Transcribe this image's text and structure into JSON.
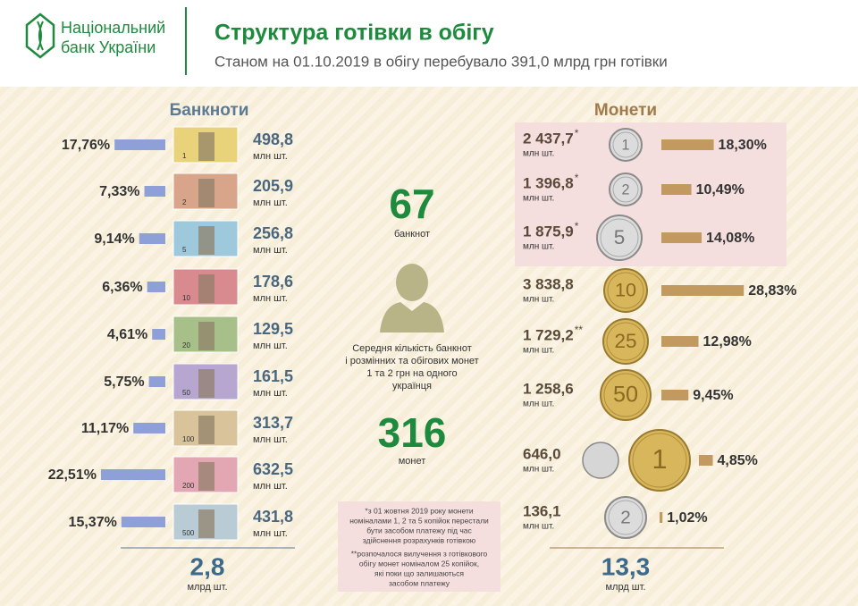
{
  "header": {
    "logo": [
      "Національний",
      "банк України"
    ],
    "title": "Структура готівки в обігу",
    "subtitle": "Станом на 01.10.2019 в обігу перебувало 391,0 млрд  грн готівки"
  },
  "banknotes": {
    "heading": "Банкноти",
    "items": [
      {
        "denomination": "1",
        "share": 17.76,
        "share_label": "17,76%",
        "amount": "498,8",
        "unit": "млн шт."
      },
      {
        "denomination": "2",
        "share": 7.33,
        "share_label": "7,33%",
        "amount": "205,9",
        "unit": "млн шт."
      },
      {
        "denomination": "5",
        "share": 9.14,
        "share_label": "9,14%",
        "amount": "256,8",
        "unit": "млн шт."
      },
      {
        "denomination": "10",
        "share": 6.36,
        "share_label": "6,36%",
        "amount": "178,6",
        "unit": "млн шт."
      },
      {
        "denomination": "20",
        "share": 4.61,
        "share_label": "4,61%",
        "amount": "129,5",
        "unit": "млн шт."
      },
      {
        "denomination": "50",
        "share": 5.75,
        "share_label": "5,75%",
        "amount": "161,5",
        "unit": "млн шт."
      },
      {
        "denomination": "100",
        "share": 11.17,
        "share_label": "11,17%",
        "amount": "313,7",
        "unit": "млн шт."
      },
      {
        "denomination": "200",
        "share": 22.51,
        "share_label": "22,51%",
        "amount": "632,5",
        "unit": "млн шт."
      },
      {
        "denomination": "500",
        "share": 15.37,
        "share_label": "15,37%",
        "amount": "431,8",
        "unit": "млн шт."
      }
    ],
    "total": "2,8",
    "total_unit": "млрд шт."
  },
  "coins": {
    "heading": "Монети",
    "items": [
      {
        "denomination": "1",
        "share": 18.3,
        "share_label": "18,30%",
        "amount": "2 437,7",
        "note": "*",
        "unit": "млн шт."
      },
      {
        "denomination": "2",
        "share": 10.49,
        "share_label": "10,49%",
        "amount": "1 396,8",
        "note": "*",
        "unit": "млн шт."
      },
      {
        "denomination": "5",
        "share": 14.08,
        "share_label": "14,08%",
        "amount": "1 875,9",
        "note": "*",
        "unit": "млн шт."
      },
      {
        "denomination": "10",
        "share": 28.83,
        "share_label": "28,83%",
        "amount": "3 838,8",
        "unit": "млн шт."
      },
      {
        "denomination": "25",
        "share": 12.98,
        "share_label": "12,98%",
        "amount": "1 729,2",
        "note": "**",
        "unit": "млн шт."
      },
      {
        "denomination": "50",
        "share": 9.45,
        "share_label": "9,45%",
        "amount": "1 258,6",
        "unit": "млн шт."
      },
      {
        "denomination": "1",
        "share": 4.85,
        "share_label": "4,85%",
        "amount": "646,0",
        "unit": "млн шт."
      },
      {
        "denomination": "2",
        "share": 1.02,
        "share_label": "1,02%",
        "amount": "136,1",
        "unit": "млн шт."
      }
    ],
    "total": "13,3",
    "total_unit": "млрд шт."
  },
  "summary": {
    "banknotes_count": "67",
    "banknotes_label": "банкнот",
    "description": [
      "Середня кількість банкнот",
      "і розмінних та обігових монет",
      "1 та 2 грн на одного",
      "українця"
    ],
    "coins_count": "316",
    "coins_label": "монет"
  },
  "footnotes": [
    [
      "*з 01 жовтня 2019 року монети",
      "номіналами 1, 2 та 5 копійок перестали",
      "бути засобом платежу під час",
      "здійснення розрахунків готівкою"
    ],
    [
      "**розпочалося вилучення з готівкового",
      "обігу монет номіналом 25 копійок,",
      "які поки що залишаються",
      "засобом платежу"
    ]
  ]
}
